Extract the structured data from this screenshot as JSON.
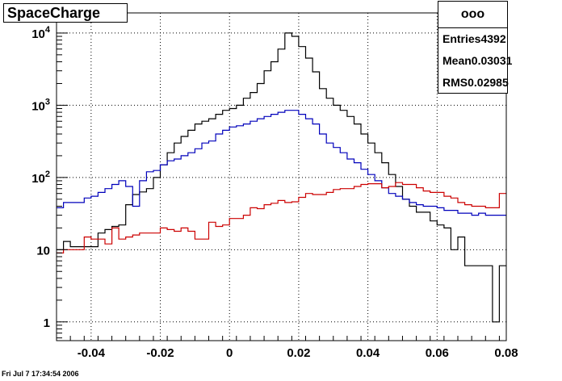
{
  "title": "SpaceCharge",
  "stats": {
    "name": "ooo",
    "entries_label": "Entries",
    "entries_value": "4392",
    "mean_label": "Mean",
    "mean_value": "0.03031",
    "rms_label": "RMS",
    "rms_value": "0.02985"
  },
  "footer": "Fri Jul  7 17:34:54 2006",
  "colors": {
    "black": "#000000",
    "blue": "#0000bb",
    "red": "#cc0000",
    "grid": "#000000"
  },
  "chart_data": {
    "type": "histogram",
    "x_range": [
      -0.05,
      0.08
    ],
    "y_range": [
      0.55,
      19000
    ],
    "y_scale": "log",
    "grid": true,
    "bins": 65,
    "x_ticks": [
      {
        "v": -0.04,
        "label": "-0.04"
      },
      {
        "v": -0.02,
        "label": "-0.02"
      },
      {
        "v": 0,
        "label": "0"
      },
      {
        "v": 0.02,
        "label": "0.02"
      },
      {
        "v": 0.04,
        "label": "0.04"
      },
      {
        "v": 0.06,
        "label": "0.06"
      },
      {
        "v": 0.08,
        "label": "0.08"
      }
    ],
    "y_ticks": [
      {
        "v": 1,
        "base": "1",
        "exp": ""
      },
      {
        "v": 10,
        "base": "10",
        "exp": ""
      },
      {
        "v": 100,
        "base": "10",
        "exp": "2"
      },
      {
        "v": 1000,
        "base": "10",
        "exp": "3"
      },
      {
        "v": 10000,
        "base": "10",
        "exp": "4"
      }
    ],
    "series": [
      {
        "color": "#000000",
        "values": [
          10,
          13,
          11,
          11,
          11,
          11,
          17,
          19,
          21,
          22,
          42,
          58,
          63,
          70,
          100,
          150,
          220,
          300,
          370,
          450,
          550,
          600,
          650,
          750,
          850,
          900,
          1000,
          1250,
          1500,
          2000,
          3000,
          4000,
          6000,
          10000,
          9000,
          6500,
          4500,
          2900,
          1700,
          1250,
          1000,
          850,
          700,
          550,
          400,
          300,
          220,
          160,
          110,
          75,
          50,
          40,
          33,
          33,
          25,
          22,
          20,
          10,
          15,
          6,
          6,
          6,
          6,
          1,
          6
        ]
      },
      {
        "color": "#0000bb",
        "values": [
          38,
          45,
          45,
          45,
          52,
          55,
          62,
          70,
          80,
          90,
          75,
          40,
          90,
          120,
          125,
          150,
          170,
          180,
          200,
          220,
          250,
          300,
          320,
          400,
          450,
          500,
          520,
          550,
          600,
          650,
          700,
          750,
          800,
          850,
          850,
          750,
          650,
          550,
          400,
          300,
          260,
          220,
          180,
          160,
          130,
          110,
          90,
          72,
          60,
          55,
          50,
          45,
          42,
          40,
          40,
          38,
          35,
          35,
          32,
          32,
          30,
          32,
          30,
          30,
          30
        ]
      },
      {
        "color": "#cc0000",
        "values": [
          9,
          10,
          10,
          10,
          15,
          14,
          14,
          12,
          20,
          14,
          15,
          16,
          17,
          17,
          17,
          20,
          19,
          18,
          20,
          18,
          14,
          14,
          24,
          21,
          22,
          27,
          27,
          30,
          38,
          37,
          42,
          44,
          48,
          45,
          46,
          53,
          60,
          58,
          58,
          62,
          68,
          70,
          70,
          75,
          80,
          82,
          82,
          72,
          75,
          85,
          80,
          80,
          72,
          65,
          62,
          62,
          55,
          52,
          45,
          42,
          40,
          40,
          38,
          38,
          60
        ]
      }
    ]
  }
}
